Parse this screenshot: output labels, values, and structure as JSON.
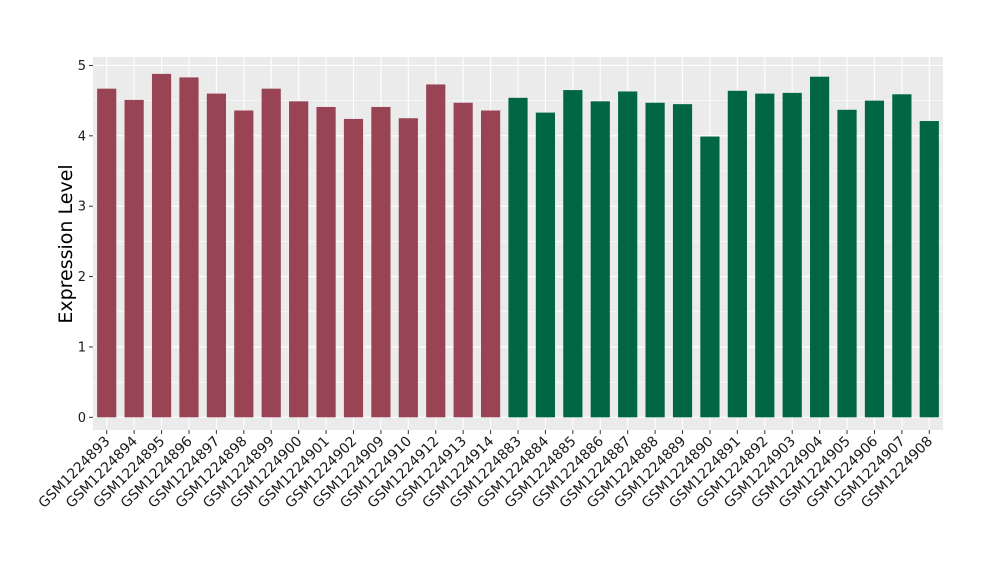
{
  "chart_data": {
    "type": "bar",
    "ylabel": "Expression Level",
    "xlabel": "",
    "ylim": [
      -0.18,
      5.12
    ],
    "yticks": [
      0,
      1,
      2,
      3,
      4,
      5
    ],
    "grid": true,
    "background": "#ebebeb",
    "categories": [
      "GSM1224893",
      "GSM1224894",
      "GSM1224895",
      "GSM1224896",
      "GSM1224897",
      "GSM1224898",
      "GSM1224899",
      "GSM1224900",
      "GSM1224901",
      "GSM1224902",
      "GSM1224909",
      "GSM1224910",
      "GSM1224912",
      "GSM1224913",
      "GSM1224914",
      "GSM1224883",
      "GSM1224884",
      "GSM1224885",
      "GSM1224886",
      "GSM1224887",
      "GSM1224888",
      "GSM1224889",
      "GSM1224890",
      "GSM1224891",
      "GSM1224892",
      "GSM1224903",
      "GSM1224904",
      "GSM1224905",
      "GSM1224906",
      "GSM1224907",
      "GSM1224908"
    ],
    "values": [
      4.67,
      4.51,
      4.88,
      4.83,
      4.6,
      4.36,
      4.67,
      4.49,
      4.41,
      4.24,
      4.41,
      4.25,
      4.73,
      4.47,
      4.36,
      4.54,
      4.33,
      4.65,
      4.49,
      4.63,
      4.47,
      4.45,
      3.99,
      4.64,
      4.6,
      4.61,
      4.84,
      4.37,
      4.5,
      4.59,
      4.21
    ],
    "group_sizes": [
      15,
      16
    ],
    "colors": [
      "#994455",
      "#006644"
    ]
  }
}
